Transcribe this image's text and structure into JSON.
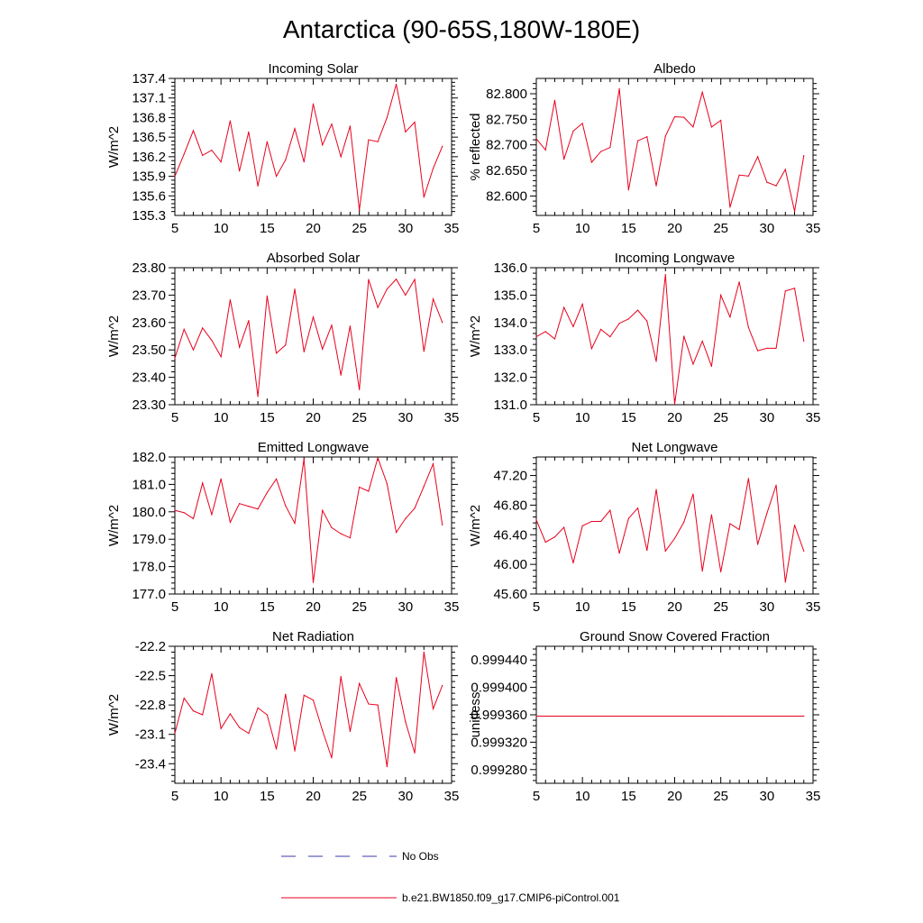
{
  "figure_title": "Antarctica (90-65S,180W-180E)",
  "legend": {
    "items": [
      {
        "label": "No Obs",
        "color": "#3a3aa8",
        "style": "dashed"
      },
      {
        "label": "b.e21.BW1850.f09_g17.CMIP6-piControl.001",
        "color": "#e8001c",
        "style": "solid"
      }
    ]
  },
  "chart_data": [
    {
      "type": "line",
      "title": "Incoming Solar",
      "ylabel": "W/m^2",
      "xlabel": "",
      "xlim": [
        5,
        35
      ],
      "xticks": [
        5,
        10,
        15,
        20,
        25,
        30,
        35
      ],
      "ylim": [
        135.3,
        137.4
      ],
      "yticks": [
        135.3,
        135.6,
        135.9,
        136.2,
        136.5,
        136.8,
        137.1,
        137.4
      ],
      "ydecimals": 1,
      "series": [
        {
          "color": "#e8001c",
          "x": [
            5,
            6,
            7,
            8,
            9,
            10,
            11,
            12,
            13,
            14,
            15,
            16,
            17,
            18,
            19,
            20,
            21,
            22,
            23,
            24,
            25,
            26,
            27,
            28,
            29,
            30,
            31,
            32,
            33,
            34
          ],
          "y": [
            135.9,
            136.24,
            136.6,
            136.22,
            136.3,
            136.12,
            136.75,
            135.98,
            136.58,
            135.75,
            136.43,
            135.9,
            136.15,
            136.63,
            136.12,
            137.01,
            136.38,
            136.7,
            136.2,
            136.67,
            135.38,
            136.46,
            136.43,
            136.8,
            137.31,
            136.58,
            136.73,
            135.58,
            136.02,
            136.36
          ]
        }
      ]
    },
    {
      "type": "line",
      "title": "Albedo",
      "ylabel": "% reflected",
      "xlabel": "",
      "xlim": [
        5,
        35
      ],
      "xticks": [
        5,
        10,
        15,
        20,
        25,
        30,
        35
      ],
      "ylim": [
        82.562,
        82.83
      ],
      "yticks": [
        82.6,
        82.65,
        82.7,
        82.75,
        82.8
      ],
      "ydecimals": 3,
      "series": [
        {
          "color": "#e8001c",
          "x": [
            5,
            6,
            7,
            8,
            9,
            10,
            11,
            12,
            13,
            14,
            15,
            16,
            17,
            18,
            19,
            20,
            21,
            22,
            23,
            24,
            25,
            26,
            27,
            28,
            29,
            30,
            31,
            32,
            33,
            34
          ],
          "y": [
            82.712,
            82.69,
            82.787,
            82.672,
            82.727,
            82.742,
            82.666,
            82.687,
            82.695,
            82.81,
            82.612,
            82.708,
            82.716,
            82.62,
            82.717,
            82.755,
            82.754,
            82.735,
            82.803,
            82.735,
            82.748,
            82.578,
            82.641,
            82.639,
            82.677,
            82.627,
            82.62,
            82.652,
            82.57,
            82.679
          ]
        }
      ]
    },
    {
      "type": "line",
      "title": "Absorbed Solar",
      "ylabel": "W/m^2",
      "xlabel": "",
      "xlim": [
        5,
        35
      ],
      "xticks": [
        5,
        10,
        15,
        20,
        25,
        30,
        35
      ],
      "ylim": [
        23.3,
        23.8
      ],
      "yticks": [
        23.3,
        23.4,
        23.5,
        23.6,
        23.7,
        23.8
      ],
      "ydecimals": 2,
      "series": [
        {
          "color": "#e8001c",
          "x": [
            5,
            6,
            7,
            8,
            9,
            10,
            11,
            12,
            13,
            14,
            15,
            16,
            17,
            18,
            19,
            20,
            21,
            22,
            23,
            24,
            25,
            26,
            27,
            28,
            29,
            30,
            31,
            32,
            33,
            34
          ],
          "y": [
            23.47,
            23.575,
            23.5,
            23.58,
            23.535,
            23.475,
            23.683,
            23.51,
            23.607,
            23.33,
            23.697,
            23.488,
            23.518,
            23.722,
            23.493,
            23.62,
            23.503,
            23.59,
            23.408,
            23.587,
            23.355,
            23.757,
            23.655,
            23.722,
            23.758,
            23.7,
            23.757,
            23.495,
            23.686,
            23.6
          ]
        }
      ]
    },
    {
      "type": "line",
      "title": "Incoming Longwave",
      "ylabel": "W/m^2",
      "xlabel": "",
      "xlim": [
        5,
        35
      ],
      "xticks": [
        5,
        10,
        15,
        20,
        25,
        30,
        35
      ],
      "ylim": [
        131.0,
        136.0
      ],
      "yticks": [
        131.0,
        132.0,
        133.0,
        134.0,
        135.0,
        136.0
      ],
      "ydecimals": 1,
      "series": [
        {
          "color": "#e8001c",
          "x": [
            5,
            6,
            7,
            8,
            9,
            10,
            11,
            12,
            13,
            14,
            15,
            16,
            17,
            18,
            19,
            20,
            21,
            22,
            23,
            24,
            25,
            26,
            27,
            28,
            29,
            30,
            31,
            32,
            33,
            34
          ],
          "y": [
            133.48,
            133.67,
            133.4,
            134.55,
            133.85,
            134.67,
            133.05,
            133.75,
            133.48,
            133.97,
            134.13,
            134.45,
            134.05,
            132.58,
            135.75,
            131.02,
            133.5,
            132.48,
            133.32,
            132.4,
            135.0,
            134.2,
            135.48,
            133.82,
            132.97,
            133.06,
            133.06,
            135.15,
            135.25,
            133.32
          ]
        }
      ]
    },
    {
      "type": "line",
      "title": "Emitted Longwave",
      "ylabel": "W/m^2",
      "xlabel": "",
      "xlim": [
        5,
        35
      ],
      "xticks": [
        5,
        10,
        15,
        20,
        25,
        30,
        35
      ],
      "ylim": [
        177.0,
        182.0
      ],
      "yticks": [
        177.0,
        178.0,
        179.0,
        180.0,
        181.0,
        182.0
      ],
      "ydecimals": 1,
      "series": [
        {
          "color": "#e8001c",
          "x": [
            5,
            6,
            7,
            8,
            9,
            10,
            11,
            12,
            13,
            14,
            15,
            16,
            17,
            18,
            19,
            20,
            21,
            22,
            23,
            24,
            25,
            26,
            27,
            28,
            29,
            30,
            31,
            32,
            33,
            34
          ],
          "y": [
            180.05,
            179.97,
            179.75,
            181.05,
            179.9,
            181.2,
            179.62,
            180.3,
            180.2,
            180.1,
            180.7,
            181.2,
            180.22,
            179.58,
            181.93,
            177.42,
            180.05,
            179.42,
            179.2,
            179.05,
            180.9,
            180.75,
            181.97,
            181.03,
            179.25,
            179.75,
            180.13,
            180.93,
            181.75,
            179.52
          ]
        }
      ]
    },
    {
      "type": "line",
      "title": "Net Longwave",
      "ylabel": "W/m^2",
      "xlabel": "",
      "xlim": [
        5,
        35
      ],
      "xticks": [
        5,
        10,
        15,
        20,
        25,
        30,
        35
      ],
      "ylim": [
        45.6,
        47.45
      ],
      "yticks": [
        45.6,
        46.0,
        46.4,
        46.8,
        47.2
      ],
      "ydecimals": 2,
      "series": [
        {
          "color": "#e8001c",
          "x": [
            5,
            6,
            7,
            8,
            9,
            10,
            11,
            12,
            13,
            14,
            15,
            16,
            17,
            18,
            19,
            20,
            21,
            22,
            23,
            24,
            25,
            26,
            27,
            28,
            29,
            30,
            31,
            32,
            33,
            34
          ],
          "y": [
            46.6,
            46.3,
            46.37,
            46.5,
            46.02,
            46.52,
            46.58,
            46.58,
            46.73,
            46.15,
            46.62,
            46.76,
            46.19,
            47.01,
            46.18,
            46.35,
            46.57,
            46.95,
            45.91,
            46.67,
            45.9,
            46.55,
            46.47,
            47.16,
            46.27,
            46.69,
            47.07,
            45.76,
            46.53,
            46.18
          ]
        }
      ]
    },
    {
      "type": "line",
      "title": "Net Radiation",
      "ylabel": "W/m^2",
      "xlabel": "",
      "xlim": [
        5,
        35
      ],
      "xticks": [
        5,
        10,
        15,
        20,
        25,
        30,
        35
      ],
      "ylim": [
        -23.6,
        -22.2
      ],
      "yticks": [
        -23.4,
        -23.1,
        -22.8,
        -22.5,
        -22.2
      ],
      "ydecimals": 1,
      "series": [
        {
          "color": "#e8001c",
          "x": [
            5,
            6,
            7,
            8,
            9,
            10,
            11,
            12,
            13,
            14,
            15,
            16,
            17,
            18,
            19,
            20,
            21,
            22,
            23,
            24,
            25,
            26,
            27,
            28,
            29,
            30,
            31,
            32,
            33,
            34
          ],
          "y": [
            -23.09,
            -22.73,
            -22.86,
            -22.9,
            -22.48,
            -23.04,
            -22.89,
            -23.03,
            -23.09,
            -22.83,
            -22.9,
            -23.25,
            -22.69,
            -23.27,
            -22.7,
            -22.75,
            -23.06,
            -23.34,
            -22.51,
            -23.07,
            -22.58,
            -22.79,
            -22.8,
            -23.43,
            -22.52,
            -22.97,
            -23.29,
            -22.26,
            -22.84,
            -22.6
          ]
        }
      ]
    },
    {
      "type": "line",
      "title": "Ground Snow Covered Fraction",
      "ylabel": "unitless",
      "xlabel": "",
      "xlim": [
        5,
        35
      ],
      "xticks": [
        5,
        10,
        15,
        20,
        25,
        30,
        35
      ],
      "ylim": [
        0.99926,
        0.99946
      ],
      "yticks": [
        0.99928,
        0.99932,
        0.99936,
        0.9994,
        0.99944
      ],
      "ydecimals": 6,
      "series": [
        {
          "color": "#e8001c",
          "x": [
            5,
            6,
            7,
            8,
            9,
            10,
            11,
            12,
            13,
            14,
            15,
            16,
            17,
            18,
            19,
            20,
            21,
            22,
            23,
            24,
            25,
            26,
            27,
            28,
            29,
            30,
            31,
            32,
            33,
            34
          ],
          "y": [
            0.999358,
            0.999358,
            0.999358,
            0.999358,
            0.999358,
            0.999358,
            0.999358,
            0.999358,
            0.999358,
            0.999358,
            0.999358,
            0.999358,
            0.999358,
            0.999358,
            0.999358,
            0.999358,
            0.999358,
            0.999358,
            0.999358,
            0.999358,
            0.999358,
            0.999358,
            0.999358,
            0.999358,
            0.999358,
            0.999358,
            0.999358,
            0.999358,
            0.999358,
            0.999358
          ]
        }
      ]
    }
  ]
}
